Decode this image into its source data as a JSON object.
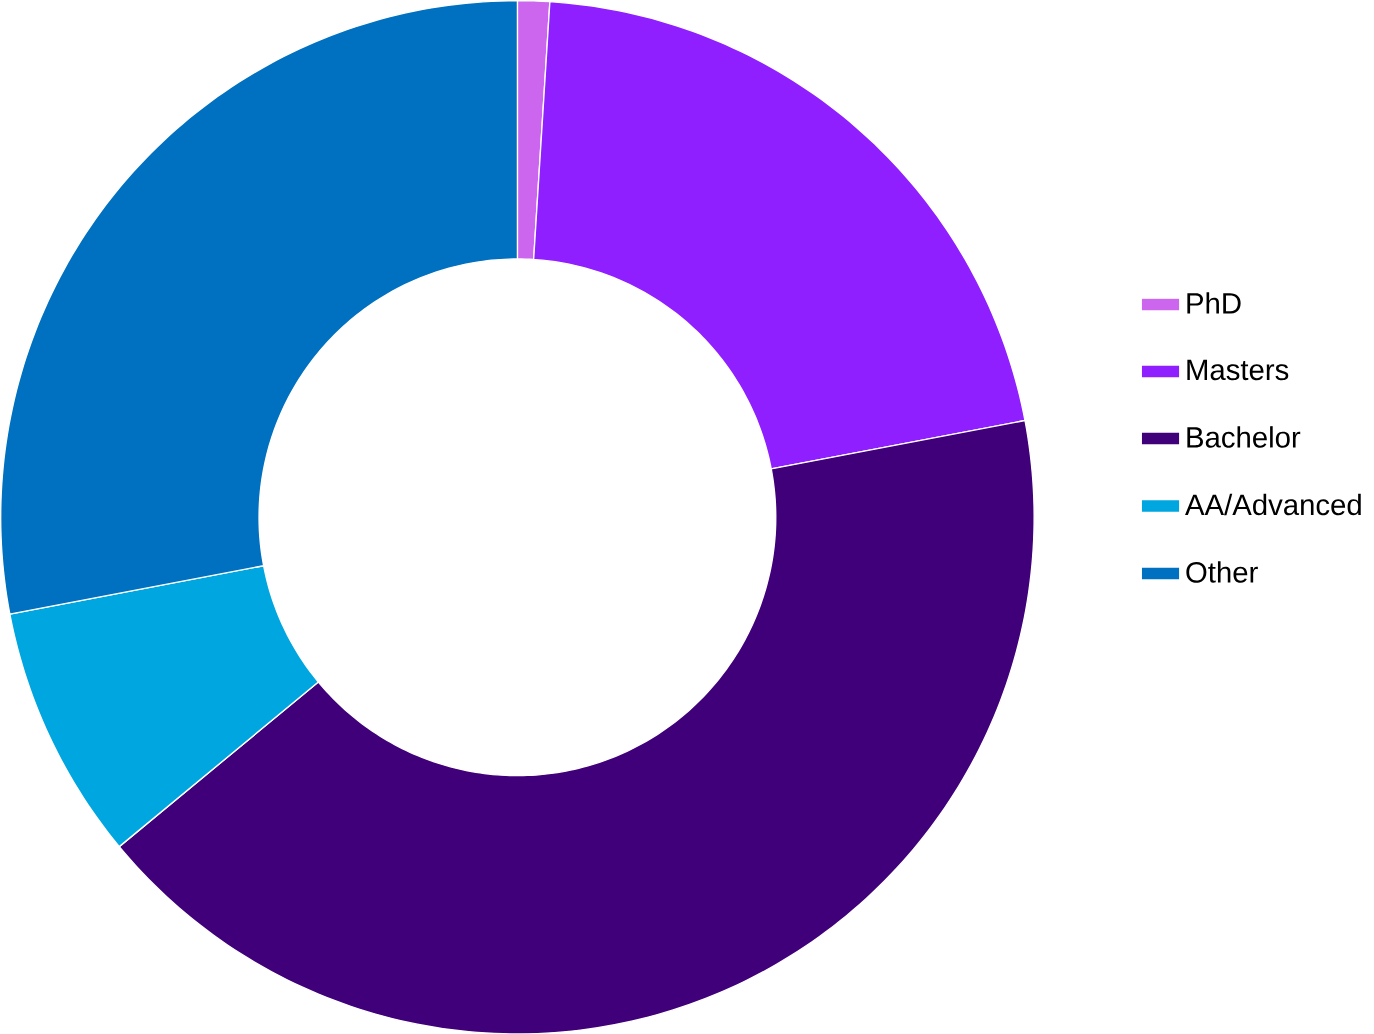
{
  "chart_data": {
    "type": "donut",
    "categories": [
      "PhD",
      "Masters",
      "Bachelor",
      "AA/Advanced",
      "Other"
    ],
    "values": [
      1,
      21,
      42,
      8,
      28
    ],
    "colors": [
      "#cc66ee",
      "#8f1fff",
      "#3f007a",
      "#00a6e0",
      "#0070c0"
    ],
    "legend": "right"
  }
}
